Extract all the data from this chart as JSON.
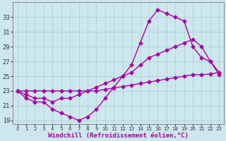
{
  "xlabel": "Windchill (Refroidissement éolien,°C)",
  "ylabel": "",
  "bg_color": "#cce8ee",
  "line_color": "#aa00aa",
  "grid_color": "#aacccc",
  "ylim": [
    18.5,
    35.0
  ],
  "xlim": [
    -0.5,
    23.5
  ],
  "yticks": [
    19,
    21,
    23,
    25,
    27,
    29,
    31,
    33
  ],
  "xticks": [
    0,
    1,
    2,
    3,
    4,
    5,
    6,
    7,
    8,
    9,
    10,
    11,
    12,
    13,
    14,
    15,
    16,
    17,
    18,
    19,
    20,
    21,
    22,
    23
  ],
  "line1_x": [
    0,
    1,
    2,
    3,
    4,
    5,
    6,
    7,
    8,
    9,
    10,
    11,
    12,
    13,
    14,
    15,
    16,
    17,
    18,
    19,
    20,
    21,
    22,
    23
  ],
  "line1_y": [
    23.0,
    22.0,
    21.5,
    21.5,
    20.5,
    20.0,
    19.5,
    19.0,
    19.5,
    20.5,
    22.0,
    23.5,
    25.0,
    26.5,
    29.5,
    32.5,
    34.0,
    33.5,
    33.0,
    32.5,
    29.0,
    27.5,
    27.0,
    25.2
  ],
  "line2_x": [
    0,
    1,
    2,
    3,
    4,
    5,
    6,
    7,
    8,
    9,
    10,
    11,
    12,
    13,
    14,
    15,
    16,
    17,
    18,
    19,
    20,
    21,
    22,
    23
  ],
  "line2_y": [
    23.0,
    22.5,
    22.0,
    22.0,
    21.5,
    22.0,
    22.0,
    22.5,
    23.0,
    23.5,
    24.0,
    24.5,
    25.0,
    25.5,
    26.5,
    27.5,
    28.0,
    28.5,
    29.0,
    29.5,
    30.0,
    29.0,
    27.0,
    25.5
  ],
  "line3_x": [
    0,
    1,
    2,
    3,
    4,
    5,
    6,
    7,
    8,
    9,
    10,
    11,
    12,
    13,
    14,
    15,
    16,
    17,
    18,
    19,
    20,
    21,
    22,
    23
  ],
  "line3_y": [
    23.0,
    23.0,
    23.0,
    23.0,
    23.0,
    23.0,
    23.0,
    23.0,
    23.0,
    23.0,
    23.2,
    23.4,
    23.6,
    23.8,
    24.0,
    24.2,
    24.4,
    24.6,
    24.8,
    25.0,
    25.2,
    25.2,
    25.3,
    25.5
  ],
  "marker": "D",
  "markersize": 2.5,
  "linewidth": 1.0,
  "xlabel_fontsize": 6.5,
  "tick_fontsize": 6.0
}
